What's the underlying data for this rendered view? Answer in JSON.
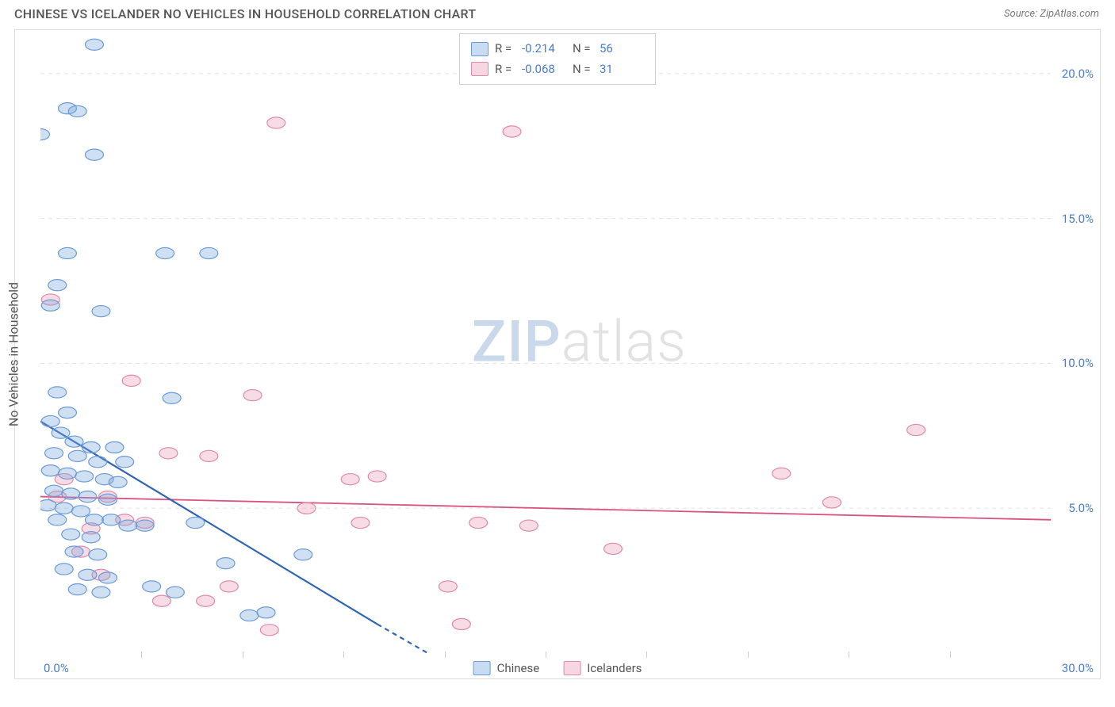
{
  "title": "CHINESE VS ICELANDER NO VEHICLES IN HOUSEHOLD CORRELATION CHART",
  "source_label": "Source: ZipAtlas.com",
  "ylabel": "No Vehicles in Household",
  "watermark": {
    "left": "ZIP",
    "right": "atlas"
  },
  "axes": {
    "xlim": [
      0,
      30
    ],
    "ylim": [
      0,
      21.5
    ],
    "ytick_labels": [
      "20.0%",
      "15.0%",
      "10.0%",
      "5.0%"
    ],
    "ytick_values": [
      20,
      15,
      10,
      5
    ],
    "xtick_values": [
      0,
      3,
      6,
      9,
      12,
      15,
      18,
      21,
      24,
      27,
      30
    ],
    "x_zero_label": "0.0%",
    "x_end_label": "30.0%",
    "grid_color": "#e5e5e5",
    "axis_color": "#dddddd",
    "tick_label_color": "#4a7ec9",
    "tick_label_fontsize": 15
  },
  "series_a": {
    "name": "Chinese",
    "label": "Chinese",
    "color_fill": "rgba(120,165,220,0.35)",
    "color_stroke": "#6a9bd8",
    "swatch_fill": "#c7dbf2",
    "swatch_stroke": "#6a9bd8",
    "marker_radius": 9,
    "R_label": "R = ",
    "R_value": "-0.214",
    "N_label": "N = ",
    "N_value": "56",
    "trend": {
      "x1": 0,
      "y1": 8.0,
      "x2": 10,
      "y2": 1.0,
      "dash_x1": 10,
      "dash_y1": 1.0,
      "dash_x2": 11.5,
      "dash_y2": 0,
      "color": "#2f66b3",
      "width": 2.2
    },
    "points": [
      [
        1.6,
        21.0
      ],
      [
        0.8,
        18.8
      ],
      [
        1.1,
        18.7
      ],
      [
        0.0,
        17.9
      ],
      [
        1.6,
        17.2
      ],
      [
        0.8,
        13.8
      ],
      [
        3.7,
        13.8
      ],
      [
        5.0,
        13.8
      ],
      [
        0.5,
        12.7
      ],
      [
        0.3,
        12.0
      ],
      [
        1.8,
        11.8
      ],
      [
        0.5,
        9.0
      ],
      [
        3.9,
        8.8
      ],
      [
        0.8,
        8.3
      ],
      [
        0.3,
        8.0
      ],
      [
        0.6,
        7.6
      ],
      [
        1.0,
        7.3
      ],
      [
        1.5,
        7.1
      ],
      [
        2.2,
        7.1
      ],
      [
        0.4,
        6.9
      ],
      [
        1.1,
        6.8
      ],
      [
        1.7,
        6.6
      ],
      [
        2.5,
        6.6
      ],
      [
        0.3,
        6.3
      ],
      [
        0.8,
        6.2
      ],
      [
        1.3,
        6.1
      ],
      [
        1.9,
        6.0
      ],
      [
        2.3,
        5.9
      ],
      [
        0.4,
        5.6
      ],
      [
        0.9,
        5.5
      ],
      [
        1.4,
        5.4
      ],
      [
        2.0,
        5.3
      ],
      [
        0.2,
        5.1
      ],
      [
        0.7,
        5.0
      ],
      [
        1.2,
        4.9
      ],
      [
        0.5,
        4.6
      ],
      [
        1.6,
        4.6
      ],
      [
        2.1,
        4.6
      ],
      [
        2.6,
        4.4
      ],
      [
        3.1,
        4.4
      ],
      [
        0.9,
        4.1
      ],
      [
        1.5,
        4.0
      ],
      [
        1.0,
        3.5
      ],
      [
        1.7,
        3.4
      ],
      [
        4.6,
        4.5
      ],
      [
        0.7,
        2.9
      ],
      [
        1.4,
        2.7
      ],
      [
        2.0,
        2.6
      ],
      [
        1.1,
        2.2
      ],
      [
        1.8,
        2.1
      ],
      [
        3.3,
        2.3
      ],
      [
        4.0,
        2.1
      ],
      [
        5.5,
        3.1
      ],
      [
        6.7,
        1.4
      ],
      [
        7.8,
        3.4
      ],
      [
        6.2,
        1.3
      ]
    ]
  },
  "series_b": {
    "name": "Icelanders",
    "label": "Icelanders",
    "color_fill": "rgba(232,140,170,0.30)",
    "color_stroke": "#e08aa8",
    "swatch_fill": "#f6d6e0",
    "swatch_stroke": "#e08aa8",
    "marker_radius": 9,
    "R_label": "R = ",
    "R_value": "-0.068",
    "N_label": "N = ",
    "N_value": "31",
    "trend": {
      "x1": 0,
      "y1": 5.4,
      "x2": 30,
      "y2": 4.6,
      "color": "#d9517f",
      "width": 1.8
    },
    "points": [
      [
        7.0,
        18.3
      ],
      [
        14.0,
        18.0
      ],
      [
        0.3,
        12.2
      ],
      [
        2.7,
        9.4
      ],
      [
        3.8,
        6.9
      ],
      [
        5.0,
        6.8
      ],
      [
        6.3,
        8.9
      ],
      [
        2.5,
        4.6
      ],
      [
        3.1,
        4.5
      ],
      [
        3.6,
        1.8
      ],
      [
        4.9,
        1.8
      ],
      [
        5.6,
        2.3
      ],
      [
        2.0,
        5.4
      ],
      [
        1.5,
        4.3
      ],
      [
        0.7,
        6.0
      ],
      [
        0.5,
        5.4
      ],
      [
        1.2,
        3.5
      ],
      [
        1.8,
        2.7
      ],
      [
        6.8,
        0.8
      ],
      [
        9.2,
        6.0
      ],
      [
        9.5,
        4.5
      ],
      [
        10.0,
        6.1
      ],
      [
        12.1,
        2.3
      ],
      [
        12.5,
        1.0
      ],
      [
        13.0,
        4.5
      ],
      [
        14.5,
        4.4
      ],
      [
        17.0,
        3.6
      ],
      [
        22.0,
        6.2
      ],
      [
        26.0,
        7.7
      ],
      [
        23.5,
        5.2
      ],
      [
        7.9,
        5.0
      ]
    ]
  }
}
